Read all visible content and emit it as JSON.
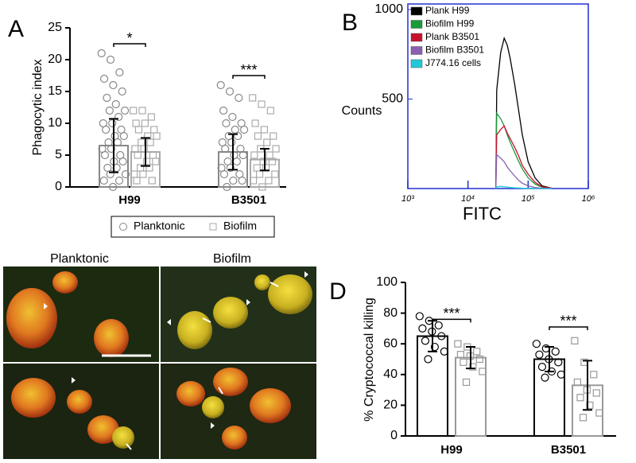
{
  "chart_data": [
    {
      "type": "bar",
      "label": "A",
      "ylabel": "Phagocytic index",
      "categories": [
        "H99",
        "B3501"
      ],
      "ylim": [
        0,
        25
      ],
      "yticks": [
        0,
        5,
        10,
        15,
        20,
        25
      ],
      "series": [
        {
          "name": "Planktonic",
          "color": "#888888",
          "marker": "circle",
          "values": [
            6.5,
            5.5
          ],
          "errors": [
            4.2,
            2.8
          ],
          "points": [
            [
              21,
              20,
              18,
              17,
              16,
              15,
              14,
              13,
              12,
              12,
              11,
              10,
              10,
              9,
              9,
              8,
              8,
              7,
              7,
              6,
              6,
              5,
              5,
              4,
              4,
              3,
              3,
              2,
              2,
              1,
              1,
              0
            ],
            [
              16,
              15,
              14,
              12,
              11,
              10,
              10,
              9,
              9,
              8,
              8,
              7,
              7,
              6,
              6,
              5,
              5,
              4,
              4,
              3,
              3,
              2,
              2,
              1,
              1,
              0
            ]
          ]
        },
        {
          "name": "Biofilm",
          "color": "#aaaaaa",
          "marker": "square",
          "values": [
            5.5,
            4.3
          ],
          "errors": [
            2.2,
            1.7
          ],
          "points": [
            [
              12,
              12,
              11,
              10,
              10,
              9,
              9,
              8,
              8,
              7,
              7,
              6,
              6,
              5,
              5,
              4,
              4,
              3,
              3,
              2,
              2,
              1,
              1
            ],
            [
              14,
              13,
              12,
              10,
              9,
              8,
              8,
              7,
              6,
              6,
              5,
              5,
              4,
              4,
              3,
              3,
              2,
              2,
              1,
              1,
              0
            ]
          ]
        }
      ],
      "annotations": [
        {
          "text": "*",
          "category": 0,
          "y": 22.5
        },
        {
          "text": "***",
          "category": 1,
          "y": 17.5
        }
      ],
      "legend": "bottom"
    },
    {
      "type": "line",
      "label": "B",
      "ylabel": "Counts",
      "xlabel": "FITC",
      "log_x": true,
      "x": [
        29000,
        30000,
        35000,
        40000,
        45000,
        50000,
        60000,
        70000,
        80000,
        100000,
        130000,
        170000,
        250000
      ],
      "xlim": [
        1000,
        1000000
      ],
      "xticks": [
        {
          "value": 1000,
          "label": "10³"
        },
        {
          "value": 10000,
          "label": "10⁴"
        },
        {
          "value": 100000,
          "label": "10⁵"
        },
        {
          "value": 1000000,
          "label": "10⁶"
        }
      ],
      "ylim": [
        0,
        1000
      ],
      "yticks": [
        500,
        1000
      ],
      "legend": "upper left",
      "series": [
        {
          "name": "Plank H99",
          "color": "#000000",
          "values": [
            0,
            550,
            760,
            840,
            800,
            730,
            580,
            430,
            300,
            150,
            60,
            15,
            2
          ]
        },
        {
          "name": "Biofilm H99",
          "color": "#1a9a3a",
          "values": [
            0,
            420,
            390,
            350,
            300,
            260,
            200,
            150,
            110,
            60,
            25,
            8,
            1
          ]
        },
        {
          "name": "Plank B3501",
          "color": "#c8102e",
          "values": [
            0,
            300,
            330,
            350,
            310,
            280,
            230,
            180,
            130,
            80,
            35,
            10,
            2
          ]
        },
        {
          "name": "Biofilm B3501",
          "color": "#8a5fb0",
          "values": [
            0,
            190,
            170,
            150,
            120,
            100,
            70,
            45,
            30,
            15,
            6,
            2,
            0
          ]
        },
        {
          "name": "J774.16 cells",
          "color": "#22c8d8",
          "values": [
            0,
            10,
            12,
            10,
            8,
            6,
            4,
            3,
            2,
            1,
            0,
            0,
            0
          ]
        }
      ]
    },
    {
      "type": "image",
      "columns": [
        "Planktonic",
        "Biofilm"
      ]
    },
    {
      "type": "bar",
      "label": "D",
      "ylabel": "% Cryptococcal killing",
      "categories": [
        "H99",
        "B3501"
      ],
      "ylim": [
        0,
        100
      ],
      "yticks": [
        0,
        20,
        40,
        60,
        80,
        100
      ],
      "series": [
        {
          "color": "#000000",
          "marker": "circle",
          "values": [
            65,
            50
          ],
          "errors": [
            10,
            8
          ],
          "points": [
            [
              78,
              75,
              72,
              70,
              68,
              65,
              62,
              58,
              55,
              50
            ],
            [
              60,
              57,
              55,
              53,
              50,
              48,
              45,
              42,
              40,
              38
            ]
          ]
        },
        {
          "color": "#999999",
          "marker": "square",
          "values": [
            51,
            33
          ],
          "errors": [
            7,
            16
          ],
          "points": [
            [
              60,
              58,
              55,
              53,
              52,
              50,
              48,
              45,
              42,
              35
            ],
            [
              62,
              48,
              40,
              35,
              30,
              28,
              25,
              20,
              15,
              12
            ]
          ]
        }
      ],
      "annotations": [
        {
          "text": "***",
          "category": 0,
          "y": 76
        },
        {
          "text": "***",
          "category": 1,
          "y": 71
        }
      ]
    }
  ]
}
